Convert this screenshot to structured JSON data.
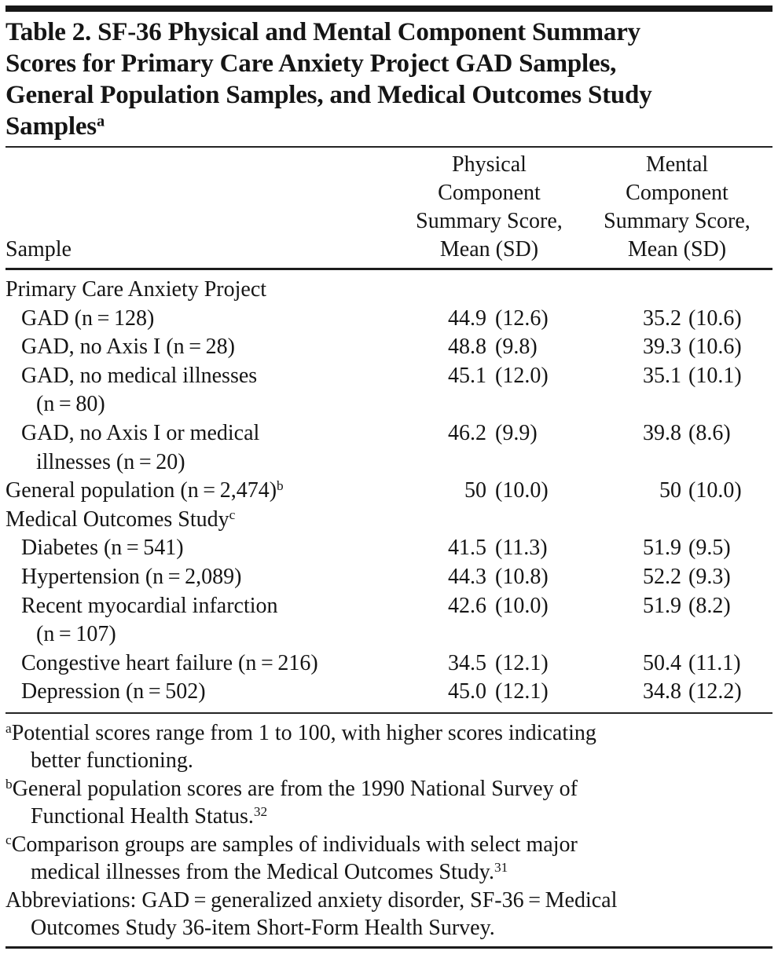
{
  "title": {
    "lines": [
      "Table 2. SF-36 Physical and Mental Component Summary",
      "Scores for Primary Care Anxiety Project GAD Samples,",
      "General Population Samples, and Medical Outcomes Study",
      "Samples"
    ],
    "sup": "a"
  },
  "table": {
    "header": {
      "sample": "Sample",
      "physical": {
        "l1": "Physical",
        "l2": "Component",
        "l3": "Summary Score,",
        "l4": "Mean (SD)"
      },
      "mental": {
        "l1": "Mental",
        "l2": "Component",
        "l3": "Summary Score,",
        "l4": "Mean (SD)"
      }
    },
    "rows": [
      {
        "label": "Primary Care Anxiety Project",
        "sup": "",
        "label2": "",
        "p_mean": "",
        "p_sd": "",
        "m_mean": "",
        "m_sd": ""
      },
      {
        "label": "GAD (n = 128)",
        "sup": "",
        "label2": "",
        "p_mean": "44.9",
        "p_sd": "(12.6)",
        "m_mean": "35.2",
        "m_sd": "(10.6)"
      },
      {
        "label": "GAD, no Axis I (n = 28)",
        "sup": "",
        "label2": "",
        "p_mean": "48.8",
        "p_sd": "(9.8)",
        "m_mean": "39.3",
        "m_sd": "(10.6)"
      },
      {
        "label": "GAD, no medical illnesses",
        "sup": "",
        "label2": "(n = 80)",
        "p_mean": "45.1",
        "p_sd": "(12.0)",
        "m_mean": "35.1",
        "m_sd": "(10.1)"
      },
      {
        "label": "GAD, no Axis I or medical",
        "sup": "",
        "label2": "illnesses (n = 20)",
        "p_mean": "46.2",
        "p_sd": "(9.9)",
        "m_mean": "39.8",
        "m_sd": "(8.6)"
      },
      {
        "label": "General population (n = 2,474)",
        "sup": "b",
        "label2": "",
        "p_mean": "50",
        "p_sd": "(10.0)",
        "m_mean": "50",
        "m_sd": "(10.0)"
      },
      {
        "label": "Medical Outcomes Study",
        "sup": "c",
        "label2": "",
        "p_mean": "",
        "p_sd": "",
        "m_mean": "",
        "m_sd": ""
      },
      {
        "label": "Diabetes (n = 541)",
        "sup": "",
        "label2": "",
        "p_mean": "41.5",
        "p_sd": "(11.3)",
        "m_mean": "51.9",
        "m_sd": "(9.5)"
      },
      {
        "label": "Hypertension (n = 2,089)",
        "sup": "",
        "label2": "",
        "p_mean": "44.3",
        "p_sd": "(10.8)",
        "m_mean": "52.2",
        "m_sd": "(9.3)"
      },
      {
        "label": "Recent myocardial infarction",
        "sup": "",
        "label2": "(n = 107)",
        "p_mean": "42.6",
        "p_sd": "(10.0)",
        "m_mean": "51.9",
        "m_sd": "(8.2)"
      },
      {
        "label": "Congestive heart failure (n = 216)",
        "sup": "",
        "label2": "",
        "p_mean": "34.5",
        "p_sd": "(12.1)",
        "m_mean": "50.4",
        "m_sd": "(11.1)"
      },
      {
        "label": "Depression (n = 502)",
        "sup": "",
        "label2": "",
        "p_mean": "45.0",
        "p_sd": "(12.1)",
        "m_mean": "34.8",
        "m_sd": "(12.2)"
      }
    ]
  },
  "footnotes": [
    {
      "marker": "a",
      "line1": "Potential scores range from 1 to 100, with higher scores indicating",
      "line2": "better functioning.",
      "ref": ""
    },
    {
      "marker": "b",
      "line1": "General population scores are from the 1990 National Survey of",
      "line2": "Functional Health Status.",
      "ref": "32"
    },
    {
      "marker": "c",
      "line1": "Comparison groups are samples of individuals with select major",
      "line2": "medical illnesses from the Medical Outcomes Study.",
      "ref": "31"
    },
    {
      "marker": "",
      "line1": "Abbreviations: GAD = generalized anxiety disorder, SF-36 = Medical",
      "line2": "Outcomes Study 36-item Short-Form Health Survey.",
      "ref": ""
    }
  ]
}
